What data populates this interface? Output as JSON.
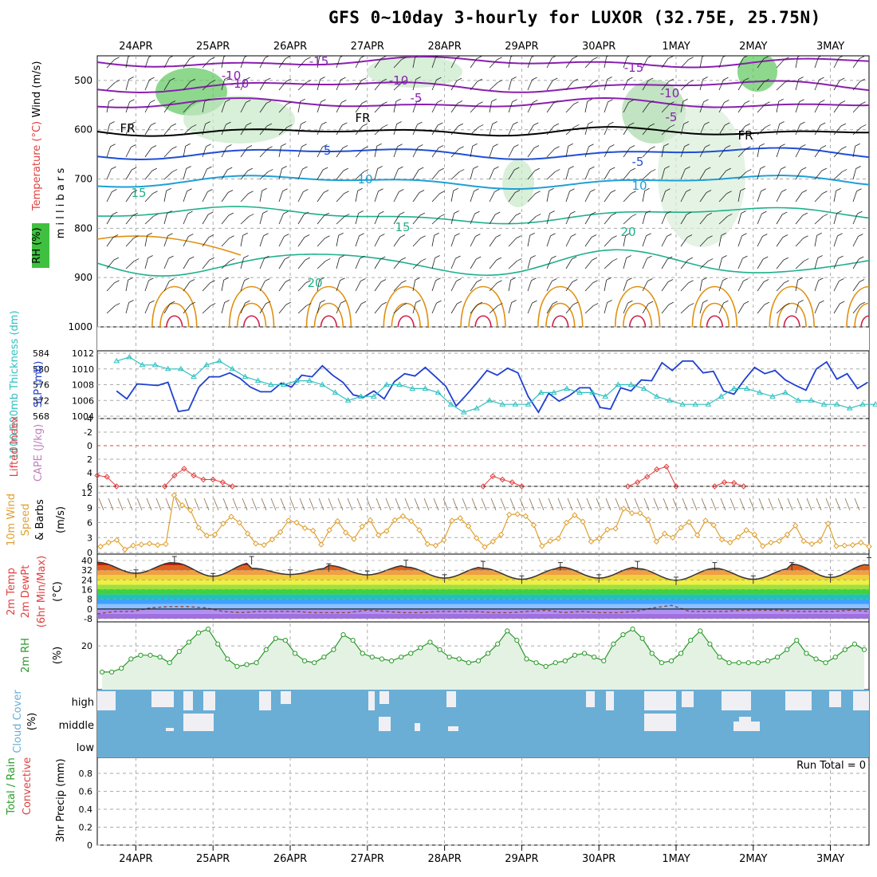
{
  "title": "GFS 0~10day 3-hourly for LUXOR (32.75E, 25.75N)",
  "date_labels": [
    "24APR",
    "25APR",
    "26APR",
    "27APR",
    "28APR",
    "29APR",
    "30APR",
    "1MAY",
    "2MAY",
    "3MAY"
  ],
  "colors": {
    "wind_purple": "#8a1fb0",
    "temp_blue": "#1f4fd6",
    "temp_cyan": "#1f9fd6",
    "temp_teal": "#1fb08a",
    "temp_orange": "#e09010",
    "temp_red": "#d0204a",
    "rh_green": "#40c040",
    "slp_blue": "#2040d0",
    "thick_cyan": "#30c0c0",
    "cape_red": "#e04040",
    "wind_orange": "#e0a030",
    "cloud_blue": "#6aaed6",
    "rh2m_green": "#2a9a2a"
  },
  "panels": {
    "upper": {
      "ylabel_wind": "Wind (m/s)",
      "ylabel_temp": "Temperature (°C)",
      "ylabel_rh": "RH (%)",
      "ylabel_mb": "m i l l i b a r s",
      "y_ticks": [
        "500",
        "600",
        "700",
        "800",
        "900",
        "1000"
      ],
      "contour_labels": [
        "-15",
        "-10",
        "-5",
        "-15",
        "-10",
        "-5",
        "FR",
        "FR",
        "FR",
        "-5",
        "-5",
        "-10",
        "-10",
        "15",
        "10",
        "15",
        "20",
        "20",
        "10"
      ]
    },
    "slp": {
      "ylabel_left": "1000-500mb Thickness (dm)",
      "ylabel_right": "SLP (mb)",
      "thick_ticks": [
        "584",
        "580",
        "576",
        "572",
        "568"
      ],
      "slp_ticks": [
        "1012",
        "1010",
        "1008",
        "1006",
        "1004"
      ]
    },
    "cape": {
      "ylabel_li": "Lifted Index",
      "ylabel_cape": "CAPE (J/kg)",
      "ticks": [
        "-4",
        "-2",
        "0",
        "2",
        "4",
        "6"
      ]
    },
    "wind10": {
      "ylabel1": "10m Wind",
      "ylabel2": "Speed",
      "ylabel3": "& Barbs",
      "ylabel4": "(m/s)",
      "ticks": [
        "12",
        "9",
        "6",
        "3",
        "0"
      ]
    },
    "temp2m": {
      "ylabel1": "2m Temp",
      "ylabel2": "2m DewPt",
      "ylabel3": "(6hr Min/Max)",
      "ylabel4": "(°C)",
      "ticks": [
        "40",
        "32",
        "24",
        "16",
        "8",
        "0",
        "-8"
      ]
    },
    "rh2m": {
      "ylabel": "2m RH",
      "unit": "(%)",
      "ticks": [
        "20"
      ]
    },
    "cloud": {
      "ylabel": "Cloud Cover",
      "unit": "(%)",
      "levels": [
        "high",
        "middle",
        "low"
      ]
    },
    "precip": {
      "ylabel1": "Total / Rain",
      "ylabel2": "Convective",
      "ylabel3": "3hr Precip (mm)",
      "ticks": [
        "0.8",
        "0.6",
        "0.4",
        "0.2",
        "0"
      ],
      "run_total": "Run Total = 0"
    }
  },
  "chart_data": [
    {
      "type": "line",
      "name": "SLP",
      "ylabel": "SLP (mb)",
      "ylim": [
        1004,
        1012
      ],
      "x_step_hours": 6,
      "values": [
        1007.2,
        1006.2,
        1008.1,
        1008.0,
        1007.9,
        1008.3,
        1004.6,
        1004.8,
        1007.7,
        1009.0,
        1009.0,
        1009.5,
        1008.8,
        1007.7,
        1007.1,
        1007.1,
        1008.2,
        1007.7,
        1009.2,
        1009.0,
        1010.4,
        1009.2,
        1008.3,
        1006.7,
        1006.4,
        1007.2,
        1006.2,
        1008.4,
        1009.4,
        1009.1,
        1010.2,
        1009.0,
        1007.8,
        1005.3,
        1006.7,
        1008.2,
        1009.8,
        1009.2,
        1010.1,
        1009.5,
        1006.5,
        1004.5,
        1006.9,
        1005.9,
        1006.6,
        1007.6,
        1007.6,
        1005.1,
        1004.9,
        1007.6,
        1007.2,
        1008.6,
        1008.5,
        1010.8,
        1009.8,
        1011.0,
        1011.0,
        1009.5,
        1009.7,
        1007.2,
        1006.8,
        1008.6,
        1010.2,
        1009.4,
        1009.8,
        1008.6,
        1007.9,
        1007.3,
        1010.0,
        1010.9,
        1008.7,
        1009.4,
        1007.5,
        1008.3,
        1012.1
      ]
    },
    {
      "type": "line",
      "name": "1000-500mb Thickness",
      "ylabel": "1000-500mb Thickness (dm)",
      "ylim": [
        568,
        584
      ],
      "x_step_hours": 6,
      "values": [
        582,
        583,
        581,
        581,
        580,
        580,
        578,
        581,
        582,
        580,
        578,
        577,
        576,
        576,
        577,
        577,
        576,
        574,
        572,
        573,
        573,
        576,
        576,
        575,
        575,
        574,
        571,
        569,
        570,
        572,
        571,
        571,
        571,
        574,
        574,
        575,
        574,
        574,
        573,
        576,
        576,
        575,
        573,
        572,
        571,
        571,
        571,
        573,
        575,
        575,
        574,
        573,
        574,
        572,
        572,
        571,
        571,
        570,
        571,
        571
      ]
    },
    {
      "type": "line",
      "name": "Lifted Index",
      "ylabel": "Lifted Index",
      "ylim": [
        -4,
        6
      ],
      "x_step_hours": 3,
      "segments": [
        {
          "start": 0,
          "values": [
            4.4,
            4.6,
            6
          ]
        },
        {
          "start": 7,
          "values": [
            6,
            4.4,
            3.4,
            4.4,
            5,
            5,
            5.4,
            6
          ]
        },
        {
          "start": 40,
          "values": [
            6,
            4.5,
            5.0,
            5.4,
            6
          ]
        },
        {
          "start": 55,
          "values": [
            6,
            5.4,
            4.6,
            3.5,
            3.1,
            6
          ]
        },
        {
          "start": 64,
          "values": [
            6,
            5.4,
            5.5,
            6
          ]
        }
      ]
    },
    {
      "type": "line",
      "name": "10m Wind Speed",
      "ylabel": "(m/s)",
      "ylim": [
        0,
        12
      ],
      "x_step_hours": 3,
      "values": [
        1.2,
        2.0,
        2.5,
        0.6,
        1.4,
        1.6,
        1.8,
        1.5,
        1.7,
        11.5,
        9.5,
        8.5,
        5,
        3.4,
        3.6,
        5.8,
        7.2,
        6.0,
        3.8,
        1.8,
        1.5,
        2.6,
        4.1,
        6.4,
        6.0,
        4.9,
        4.4,
        1.6,
        4.5,
        6.3,
        4.0,
        2.7,
        5.2,
        6.5,
        3.5,
        4.3,
        6.5,
        7.3,
        6.3,
        4.5,
        1.7,
        1.4,
        2.5,
        6.4,
        6.9,
        5.3,
        2.9,
        1.1,
        2.2,
        3.6,
        7.6,
        7.7,
        7.3,
        5.5,
        1.3,
        2.3,
        2.8,
        6.0,
        7.5,
        6.2,
        2.2,
        2.8,
        4.6,
        4.8,
        8.8,
        7.9,
        7.9,
        6.6,
        2.2,
        3.8,
        3.0,
        5.0,
        6.1,
        3.5,
        6.4,
        5.5,
        2.6,
        2.0,
        3.1,
        4.5,
        3.6,
        1.3,
        2.0,
        2.3,
        3.6,
        5.4,
        2.3,
        1.7,
        2.3,
        5.8,
        1.3,
        1.4,
        1.5,
        2.0,
        1.2
      ]
    },
    {
      "type": "area",
      "name": "2m Temp",
      "ylabel": "(°C)",
      "ylim": [
        -8,
        40
      ],
      "x_step_hours": 3,
      "min_max": [
        [
          27,
          41
        ],
        [
          24,
          41
        ],
        [
          27,
          35
        ],
        [
          26,
          38
        ],
        [
          23,
          37
        ],
        [
          22,
          36
        ],
        [
          23,
          37
        ],
        [
          21,
          36
        ],
        [
          22,
          36
        ],
        [
          23,
          40
        ],
        [
          23,
          39
        ],
        [
          21,
          37
        ],
        [
          24,
          39
        ]
      ]
    },
    {
      "type": "line",
      "name": "2m DewPt",
      "ylabel": "(°C)",
      "ylim": [
        -8,
        40
      ],
      "x_step_hours": 3,
      "values": [
        -4,
        -2,
        -2,
        1,
        2,
        2,
        1,
        -2,
        -3,
        -2,
        -2,
        -2,
        -3,
        -3,
        -3,
        -1,
        -2,
        -3,
        -3,
        -2,
        -2,
        -2,
        -3,
        -3,
        -2,
        -1,
        -3,
        -2,
        -3,
        -3,
        -2,
        1,
        3,
        -2,
        -2,
        -2,
        -1,
        -1,
        -1,
        -2,
        -2,
        -2,
        -1,
        -2
      ]
    },
    {
      "type": "area",
      "name": "2m RH",
      "ylabel": "(%)",
      "ylim": [
        0,
        40
      ],
      "x_step_hours": 3,
      "values": [
        6,
        6,
        8,
        13,
        15,
        15,
        14,
        11,
        17,
        22,
        27,
        29,
        21,
        13,
        9,
        10,
        11,
        18,
        24,
        23,
        16,
        12,
        11,
        14,
        18,
        26,
        23,
        16,
        14,
        13,
        12,
        14,
        16,
        19,
        22,
        18,
        14,
        13,
        11,
        12,
        16,
        21,
        28,
        23,
        13,
        11,
        9,
        11,
        12,
        15,
        16,
        14,
        12,
        21,
        26,
        29,
        24,
        16,
        11,
        12,
        16,
        23,
        28,
        21,
        14,
        11,
        11,
        11,
        11,
        12,
        14,
        18,
        23,
        16,
        13,
        11,
        14,
        18,
        21,
        18
      ]
    },
    {
      "type": "bar",
      "name": "3hr Precip",
      "ylabel": "3hr Precip (mm)",
      "ylim": [
        0,
        0.8
      ],
      "values": [
        0,
        0,
        0,
        0,
        0,
        0,
        0,
        0,
        0,
        0
      ]
    }
  ]
}
